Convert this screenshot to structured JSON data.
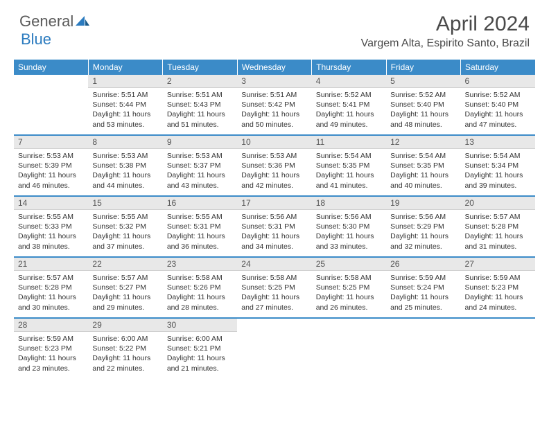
{
  "brand": {
    "part1": "General",
    "part2": "Blue"
  },
  "title": "April 2024",
  "location": "Vargem Alta, Espirito Santo, Brazil",
  "colors": {
    "header_bg": "#3b8bc8",
    "header_text": "#ffffff",
    "daynum_bg": "#e8e8e8",
    "text": "#333333",
    "logo_gray": "#5a5a5a",
    "logo_blue": "#2b7bbf"
  },
  "weekdays": [
    "Sunday",
    "Monday",
    "Tuesday",
    "Wednesday",
    "Thursday",
    "Friday",
    "Saturday"
  ],
  "layout": {
    "first_weekday_index": 1,
    "days_in_month": 30
  },
  "days": {
    "1": {
      "sunrise": "5:51 AM",
      "sunset": "5:44 PM",
      "daylight": "11 hours and 53 minutes."
    },
    "2": {
      "sunrise": "5:51 AM",
      "sunset": "5:43 PM",
      "daylight": "11 hours and 51 minutes."
    },
    "3": {
      "sunrise": "5:51 AM",
      "sunset": "5:42 PM",
      "daylight": "11 hours and 50 minutes."
    },
    "4": {
      "sunrise": "5:52 AM",
      "sunset": "5:41 PM",
      "daylight": "11 hours and 49 minutes."
    },
    "5": {
      "sunrise": "5:52 AM",
      "sunset": "5:40 PM",
      "daylight": "11 hours and 48 minutes."
    },
    "6": {
      "sunrise": "5:52 AM",
      "sunset": "5:40 PM",
      "daylight": "11 hours and 47 minutes."
    },
    "7": {
      "sunrise": "5:53 AM",
      "sunset": "5:39 PM",
      "daylight": "11 hours and 46 minutes."
    },
    "8": {
      "sunrise": "5:53 AM",
      "sunset": "5:38 PM",
      "daylight": "11 hours and 44 minutes."
    },
    "9": {
      "sunrise": "5:53 AM",
      "sunset": "5:37 PM",
      "daylight": "11 hours and 43 minutes."
    },
    "10": {
      "sunrise": "5:53 AM",
      "sunset": "5:36 PM",
      "daylight": "11 hours and 42 minutes."
    },
    "11": {
      "sunrise": "5:54 AM",
      "sunset": "5:35 PM",
      "daylight": "11 hours and 41 minutes."
    },
    "12": {
      "sunrise": "5:54 AM",
      "sunset": "5:35 PM",
      "daylight": "11 hours and 40 minutes."
    },
    "13": {
      "sunrise": "5:54 AM",
      "sunset": "5:34 PM",
      "daylight": "11 hours and 39 minutes."
    },
    "14": {
      "sunrise": "5:55 AM",
      "sunset": "5:33 PM",
      "daylight": "11 hours and 38 minutes."
    },
    "15": {
      "sunrise": "5:55 AM",
      "sunset": "5:32 PM",
      "daylight": "11 hours and 37 minutes."
    },
    "16": {
      "sunrise": "5:55 AM",
      "sunset": "5:31 PM",
      "daylight": "11 hours and 36 minutes."
    },
    "17": {
      "sunrise": "5:56 AM",
      "sunset": "5:31 PM",
      "daylight": "11 hours and 34 minutes."
    },
    "18": {
      "sunrise": "5:56 AM",
      "sunset": "5:30 PM",
      "daylight": "11 hours and 33 minutes."
    },
    "19": {
      "sunrise": "5:56 AM",
      "sunset": "5:29 PM",
      "daylight": "11 hours and 32 minutes."
    },
    "20": {
      "sunrise": "5:57 AM",
      "sunset": "5:28 PM",
      "daylight": "11 hours and 31 minutes."
    },
    "21": {
      "sunrise": "5:57 AM",
      "sunset": "5:28 PM",
      "daylight": "11 hours and 30 minutes."
    },
    "22": {
      "sunrise": "5:57 AM",
      "sunset": "5:27 PM",
      "daylight": "11 hours and 29 minutes."
    },
    "23": {
      "sunrise": "5:58 AM",
      "sunset": "5:26 PM",
      "daylight": "11 hours and 28 minutes."
    },
    "24": {
      "sunrise": "5:58 AM",
      "sunset": "5:25 PM",
      "daylight": "11 hours and 27 minutes."
    },
    "25": {
      "sunrise": "5:58 AM",
      "sunset": "5:25 PM",
      "daylight": "11 hours and 26 minutes."
    },
    "26": {
      "sunrise": "5:59 AM",
      "sunset": "5:24 PM",
      "daylight": "11 hours and 25 minutes."
    },
    "27": {
      "sunrise": "5:59 AM",
      "sunset": "5:23 PM",
      "daylight": "11 hours and 24 minutes."
    },
    "28": {
      "sunrise": "5:59 AM",
      "sunset": "5:23 PM",
      "daylight": "11 hours and 23 minutes."
    },
    "29": {
      "sunrise": "6:00 AM",
      "sunset": "5:22 PM",
      "daylight": "11 hours and 22 minutes."
    },
    "30": {
      "sunrise": "6:00 AM",
      "sunset": "5:21 PM",
      "daylight": "11 hours and 21 minutes."
    }
  },
  "labels": {
    "sunrise": "Sunrise:",
    "sunset": "Sunset:",
    "daylight": "Daylight:"
  }
}
